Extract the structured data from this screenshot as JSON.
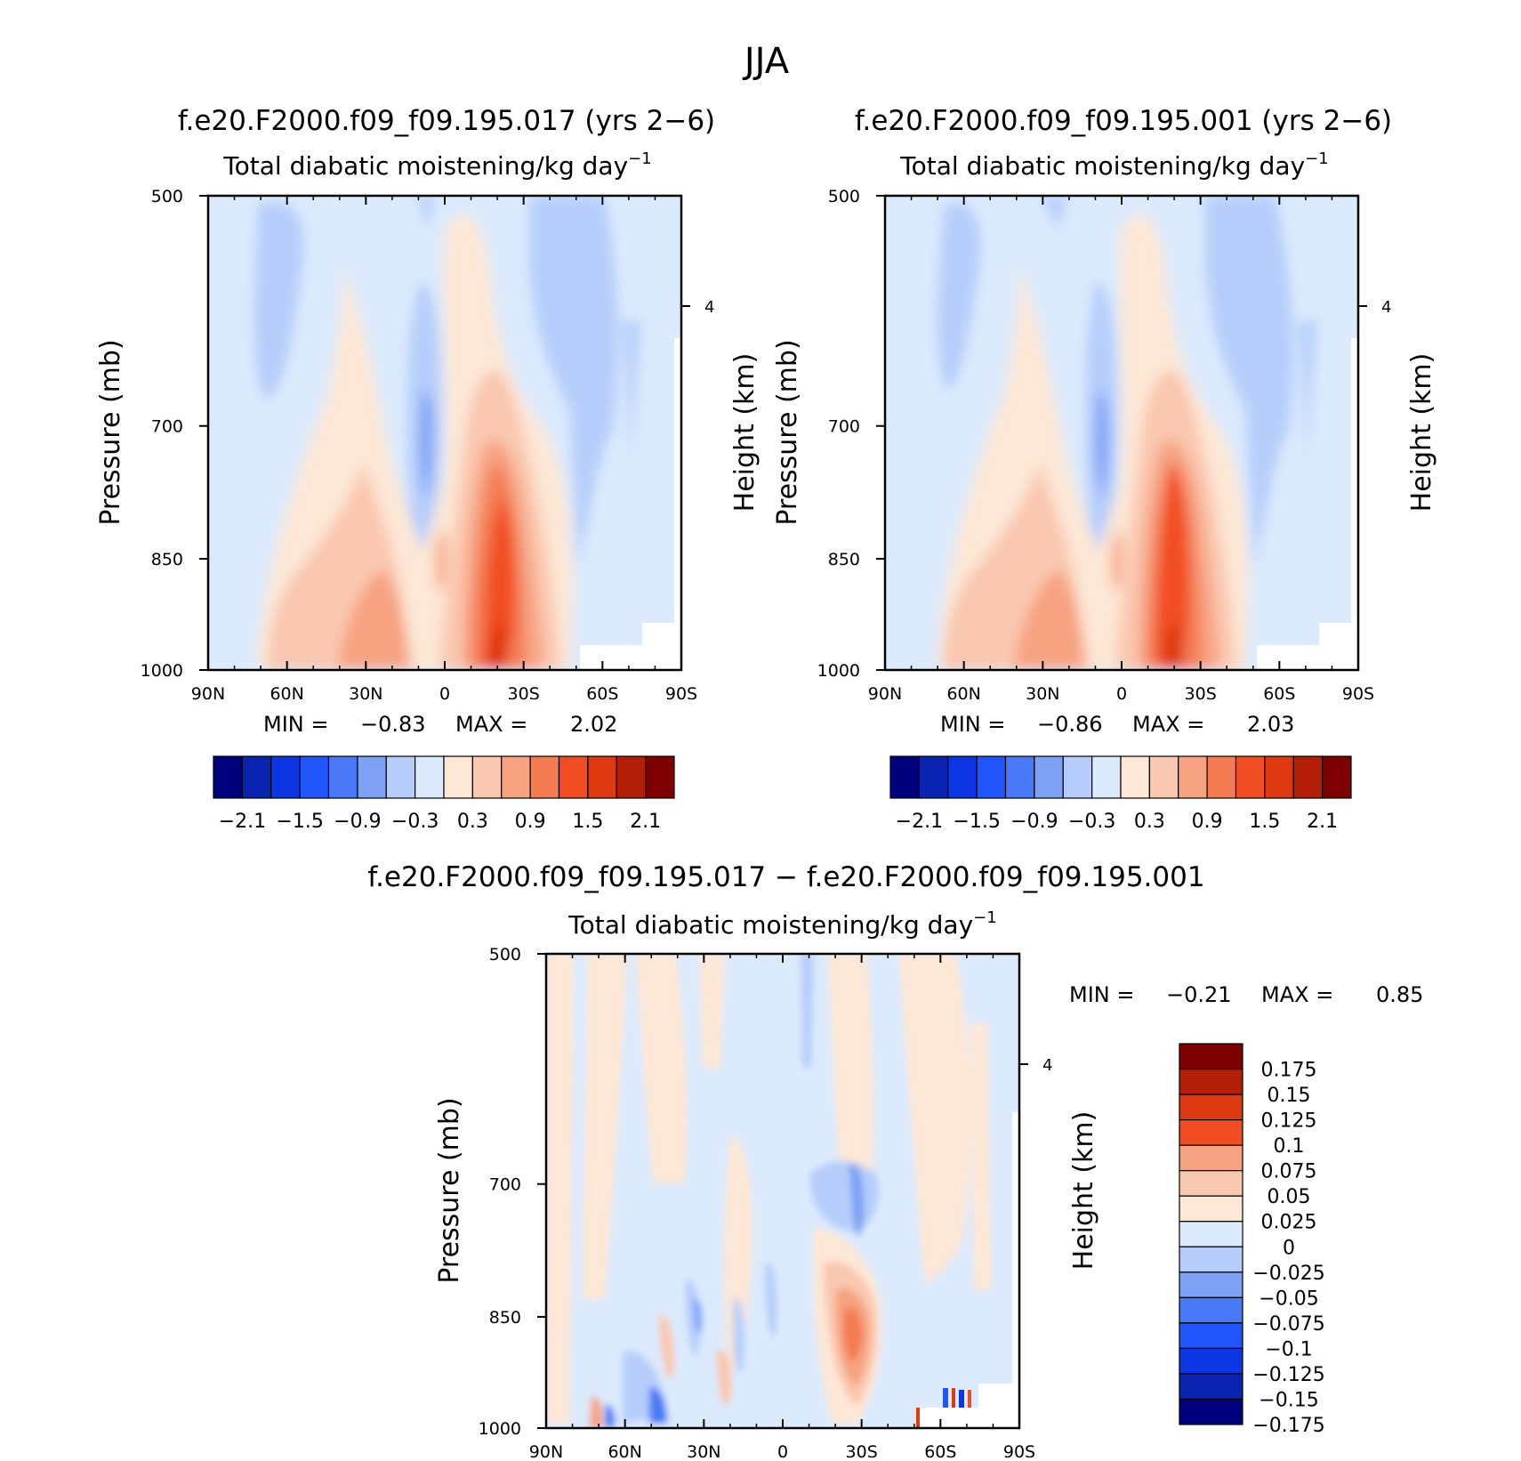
{
  "season_title": "JJA",
  "colors": {
    "panel_scale": [
      "#00007f",
      "#0a23b0",
      "#0c35e3",
      "#1f55fb",
      "#4979f6",
      "#7ea0f5",
      "#b6cdfb",
      "#dbeafd",
      "#fde7d6",
      "#fac7b0",
      "#f7a382",
      "#f47b52",
      "#f24d22",
      "#de3910",
      "#b31e08",
      "#7f0000"
    ],
    "diff_scale": [
      "#7f0000",
      "#b31e08",
      "#de3910",
      "#f24d22",
      "#f7a382",
      "#fac7b0",
      "#fde7d6",
      "#dbeafd",
      "#b6cdfb",
      "#7ea0f5",
      "#4979f6",
      "#1f55fb",
      "#0c35e3",
      "#0a23b0",
      "#00007f"
    ]
  },
  "chart_data": [
    {
      "type": "heatmap",
      "id": "panel-left",
      "title": "f.e20.F2000.f09_f09.195.017 (yrs 2−6)",
      "subtitle": "Total diabatic moistening/kg day",
      "subtitle_sup": "−1",
      "ylabel": "Pressure (mb)",
      "y2label": "Height (km)",
      "x_ticks": [
        "90N",
        "60N",
        "30N",
        "0",
        "30S",
        "60S",
        "90S"
      ],
      "y_ticks": [
        "500",
        "700",
        "850",
        "1000"
      ],
      "y2_ticks": [
        "4"
      ],
      "ylim": [
        1000,
        500
      ],
      "stats": {
        "min_label": "MIN =",
        "min": "−0.83",
        "max_label": "MAX =",
        "max": "2.02"
      },
      "colorbar_labels": [
        "−2.1",
        "−1.5",
        "−0.9",
        "−0.3",
        "0.3",
        "0.9",
        "1.5",
        "2.1"
      ]
    },
    {
      "type": "heatmap",
      "id": "panel-right",
      "title": "f.e20.F2000.f09_f09.195.001 (yrs 2−6)",
      "subtitle": "Total diabatic moistening/kg day",
      "subtitle_sup": "−1",
      "ylabel": "Pressure (mb)",
      "y2label": "Height (km)",
      "x_ticks": [
        "90N",
        "60N",
        "30N",
        "0",
        "30S",
        "60S",
        "90S"
      ],
      "y_ticks": [
        "500",
        "700",
        "850",
        "1000"
      ],
      "y2_ticks": [
        "4"
      ],
      "ylim": [
        1000,
        500
      ],
      "stats": {
        "min_label": "MIN =",
        "min": "−0.86",
        "max_label": "MAX =",
        "max": "2.03"
      },
      "colorbar_labels": [
        "−2.1",
        "−1.5",
        "−0.9",
        "−0.3",
        "0.3",
        "0.9",
        "1.5",
        "2.1"
      ]
    },
    {
      "type": "heatmap",
      "id": "panel-diff",
      "title": "f.e20.F2000.f09_f09.195.017 − f.e20.F2000.f09_f09.195.001",
      "subtitle": "Total diabatic moistening/kg day",
      "subtitle_sup": "−1",
      "ylabel": "Pressure (mb)",
      "y2label": "Height (km)",
      "x_ticks": [
        "90N",
        "60N",
        "30N",
        "0",
        "30S",
        "60S",
        "90S"
      ],
      "y_ticks": [
        "500",
        "700",
        "850",
        "1000"
      ],
      "y2_ticks": [
        "4"
      ],
      "ylim": [
        1000,
        500
      ],
      "stats": {
        "min_label": "MIN =",
        "min": "−0.21",
        "max_label": "MAX =",
        "max": "0.85"
      },
      "colorbar_labels": [
        "0.175",
        "0.15",
        "0.125",
        "0.1",
        "0.075",
        "0.05",
        "0.025",
        "0",
        "−0.025",
        "−0.05",
        "−0.075",
        "−0.1",
        "−0.125",
        "−0.15",
        "−0.175"
      ]
    }
  ]
}
